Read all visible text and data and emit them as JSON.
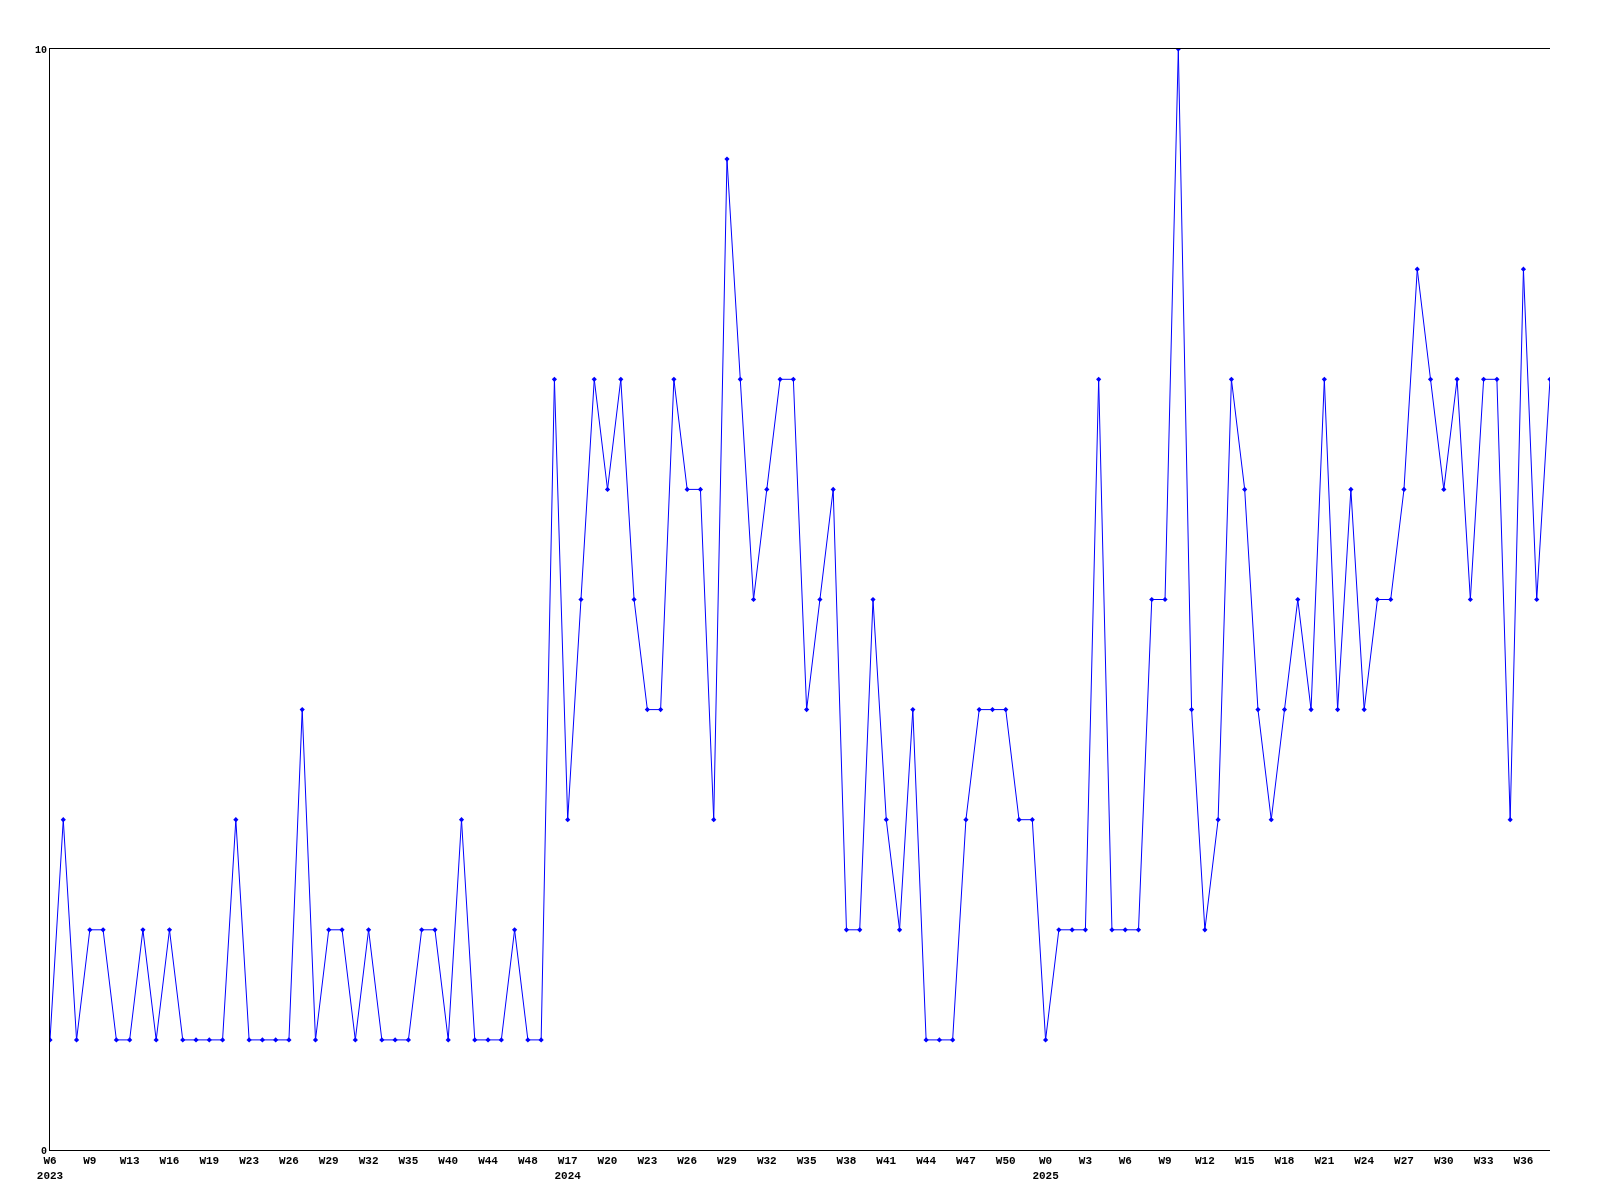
{
  "chart_data": {
    "type": "line",
    "color": "#0000ff",
    "marker": "diamond",
    "legend": false,
    "categories": [
      "W6\n2023",
      null,
      null,
      "W9",
      null,
      null,
      "W13",
      null,
      null,
      "W16",
      null,
      null,
      "W19",
      null,
      null,
      "W23",
      null,
      null,
      "W26",
      null,
      null,
      "W29",
      null,
      null,
      "W32",
      null,
      null,
      "W35",
      null,
      null,
      "W40",
      null,
      null,
      "W44",
      null,
      null,
      "W48",
      null,
      null,
      "W17\n2024",
      null,
      null,
      "W20",
      null,
      null,
      "W23",
      null,
      null,
      "W26",
      null,
      null,
      "W29",
      null,
      null,
      "W32",
      null,
      null,
      "W35",
      null,
      null,
      "W38",
      null,
      null,
      "W41",
      null,
      null,
      "W44",
      null,
      null,
      "W47",
      null,
      null,
      "W50",
      null,
      null,
      "W0\n2025",
      null,
      null,
      "W3",
      null,
      null,
      "W6",
      null,
      null,
      "W9",
      null,
      null,
      "W12",
      null,
      null,
      "W15",
      null,
      null,
      "W18",
      null,
      null,
      "W21",
      null,
      null,
      "W24",
      null,
      null,
      "W27",
      null,
      null,
      "W30",
      null,
      null,
      "W33",
      null,
      null,
      "W36",
      null,
      null
    ],
    "values": [
      1,
      3,
      1,
      2,
      2,
      1,
      1,
      2,
      1,
      2,
      1,
      1,
      1,
      1,
      3,
      1,
      1,
      1,
      1,
      4,
      1,
      2,
      2,
      1,
      2,
      1,
      1,
      1,
      2,
      2,
      1,
      3,
      1,
      1,
      1,
      2,
      1,
      1,
      7,
      3,
      5,
      7,
      6,
      7,
      5,
      4,
      4,
      7,
      6,
      6,
      3,
      9,
      7,
      5,
      6,
      7,
      7,
      4,
      5,
      6,
      2,
      2,
      5,
      3,
      2,
      4,
      1,
      1,
      1,
      3,
      4,
      4,
      4,
      3,
      3,
      1,
      2,
      2,
      2,
      7,
      2,
      2,
      2,
      5,
      5,
      10,
      4,
      2,
      3,
      7,
      6,
      4,
      3,
      4,
      5,
      4,
      7,
      4,
      6,
      4,
      5,
      5,
      6,
      8,
      7,
      6,
      7,
      5,
      7,
      7,
      3,
      8,
      5,
      7
    ],
    "ylim": [
      0,
      10
    ],
    "yticks": [
      0,
      10
    ]
  }
}
